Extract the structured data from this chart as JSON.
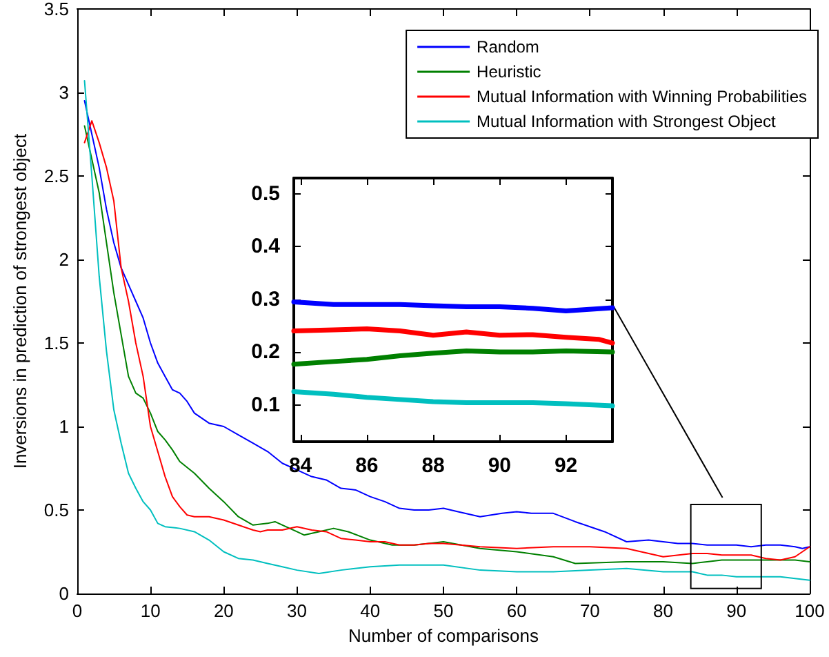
{
  "chart_data": [
    {
      "type": "line",
      "xlabel": "Number of comparisons",
      "ylabel": "Inversions in prediction of strongest object",
      "xlim": [
        0,
        100
      ],
      "xticks": [
        0,
        10,
        20,
        30,
        40,
        50,
        60,
        70,
        80,
        90,
        100
      ],
      "ylim": [
        0,
        3.5
      ],
      "yticks": [
        0,
        0.5,
        1,
        1.5,
        2,
        2.5,
        3,
        3.5
      ],
      "legend": "top right",
      "grid": false,
      "series": [
        {
          "name": "Random",
          "color": "#0000ff",
          "x": [
            1,
            2,
            3,
            4,
            5,
            6,
            7,
            8,
            9,
            10,
            11,
            12,
            13,
            14,
            15,
            16,
            18,
            20,
            22,
            24,
            26,
            28,
            30,
            32,
            34,
            36,
            38,
            40,
            42,
            44,
            46,
            48,
            50,
            52,
            55,
            58,
            60,
            62,
            65,
            68,
            70,
            72,
            75,
            78,
            80,
            82,
            84,
            86,
            88,
            90,
            92,
            94,
            96,
            98,
            99,
            100
          ],
          "values": [
            2.95,
            2.75,
            2.55,
            2.3,
            2.1,
            1.95,
            1.85,
            1.75,
            1.65,
            1.5,
            1.38,
            1.3,
            1.22,
            1.2,
            1.15,
            1.08,
            1.02,
            1.0,
            0.95,
            0.9,
            0.85,
            0.78,
            0.74,
            0.7,
            0.68,
            0.63,
            0.62,
            0.58,
            0.55,
            0.51,
            0.5,
            0.5,
            0.51,
            0.49,
            0.46,
            0.48,
            0.49,
            0.48,
            0.48,
            0.43,
            0.4,
            0.37,
            0.31,
            0.32,
            0.31,
            0.3,
            0.3,
            0.29,
            0.29,
            0.29,
            0.28,
            0.29,
            0.29,
            0.28,
            0.27,
            0.28
          ]
        },
        {
          "name": "Heuristic",
          "color": "#008000",
          "x": [
            1,
            2,
            3,
            4,
            5,
            6,
            7,
            8,
            9,
            10,
            11,
            12,
            13,
            14,
            16,
            18,
            20,
            22,
            24,
            26,
            27,
            30,
            31,
            33,
            35,
            37,
            40,
            43,
            46,
            48,
            50,
            55,
            60,
            65,
            68,
            75,
            80,
            84,
            86,
            88,
            90,
            92,
            94,
            96,
            98,
            100
          ],
          "values": [
            2.8,
            2.6,
            2.4,
            2.1,
            1.8,
            1.55,
            1.3,
            1.2,
            1.17,
            1.08,
            0.97,
            0.92,
            0.86,
            0.79,
            0.72,
            0.63,
            0.55,
            0.46,
            0.41,
            0.42,
            0.43,
            0.37,
            0.35,
            0.37,
            0.39,
            0.37,
            0.32,
            0.29,
            0.29,
            0.3,
            0.31,
            0.27,
            0.25,
            0.22,
            0.18,
            0.19,
            0.19,
            0.18,
            0.19,
            0.2,
            0.2,
            0.2,
            0.2,
            0.2,
            0.2,
            0.19
          ]
        },
        {
          "name": "Mutual Information with Winning Probabilities",
          "color": "#ff0000",
          "x": [
            1,
            2,
            3,
            4,
            5,
            6,
            7,
            8,
            9,
            10,
            11,
            12,
            13,
            14,
            15,
            16,
            18,
            20,
            22,
            24,
            25,
            26,
            28,
            30,
            32,
            34,
            36,
            38,
            40,
            42,
            44,
            46,
            48,
            50,
            55,
            60,
            65,
            70,
            75,
            80,
            84,
            86,
            88,
            90,
            92,
            94,
            96,
            98,
            100
          ],
          "values": [
            2.7,
            2.83,
            2.7,
            2.55,
            2.35,
            1.95,
            1.75,
            1.5,
            1.3,
            1.0,
            0.85,
            0.7,
            0.58,
            0.52,
            0.47,
            0.46,
            0.46,
            0.44,
            0.41,
            0.38,
            0.37,
            0.38,
            0.38,
            0.4,
            0.38,
            0.37,
            0.33,
            0.32,
            0.31,
            0.31,
            0.29,
            0.29,
            0.3,
            0.3,
            0.28,
            0.27,
            0.28,
            0.28,
            0.27,
            0.22,
            0.24,
            0.24,
            0.23,
            0.23,
            0.23,
            0.21,
            0.2,
            0.22,
            0.28
          ]
        },
        {
          "name": "Mutual Information with Strongest Object",
          "color": "#00bfbf",
          "x": [
            1,
            2,
            3,
            4,
            5,
            6,
            7,
            8,
            9,
            10,
            11,
            12,
            14,
            16,
            18,
            20,
            22,
            24,
            26,
            28,
            30,
            33,
            36,
            40,
            44,
            48,
            50,
            55,
            60,
            65,
            70,
            75,
            80,
            84,
            86,
            88,
            90,
            92,
            94,
            96,
            98,
            100
          ],
          "values": [
            3.07,
            2.5,
            1.9,
            1.45,
            1.1,
            0.9,
            0.72,
            0.63,
            0.55,
            0.5,
            0.42,
            0.4,
            0.39,
            0.37,
            0.32,
            0.25,
            0.21,
            0.2,
            0.18,
            0.16,
            0.14,
            0.12,
            0.14,
            0.16,
            0.17,
            0.17,
            0.17,
            0.14,
            0.13,
            0.13,
            0.14,
            0.15,
            0.13,
            0.13,
            0.11,
            0.11,
            0.1,
            0.1,
            0.1,
            0.1,
            0.09,
            0.08
          ]
        }
      ]
    },
    {
      "type": "line",
      "xlim": [
        83.8,
        93.4
      ],
      "xticks": [
        84,
        86,
        88,
        90,
        92
      ],
      "ylim": [
        0.03,
        0.53
      ],
      "yticks": [
        0.1,
        0.2,
        0.3,
        0.4,
        0.5
      ],
      "grid": false,
      "series": [
        {
          "color": "#0000ff",
          "x": [
            83.8,
            85,
            86,
            87,
            88,
            89,
            90,
            91,
            92,
            93.4
          ],
          "values": [
            0.295,
            0.29,
            0.29,
            0.29,
            0.288,
            0.286,
            0.286,
            0.283,
            0.278,
            0.284
          ]
        },
        {
          "color": "#ff0000",
          "x": [
            83.8,
            85,
            86,
            87,
            88,
            89,
            90,
            91,
            92,
            93,
            93.4
          ],
          "values": [
            0.24,
            0.242,
            0.244,
            0.24,
            0.232,
            0.238,
            0.232,
            0.233,
            0.228,
            0.224,
            0.217
          ]
        },
        {
          "color": "#008000",
          "x": [
            83.8,
            85,
            86,
            87,
            88,
            89,
            90,
            91,
            92,
            93.4
          ],
          "values": [
            0.177,
            0.182,
            0.186,
            0.193,
            0.198,
            0.202,
            0.2,
            0.2,
            0.202,
            0.2
          ]
        },
        {
          "color": "#00bfbf",
          "x": [
            83.8,
            85,
            86,
            87,
            88,
            89,
            90,
            91,
            92,
            93.4
          ],
          "values": [
            0.125,
            0.12,
            0.114,
            0.11,
            0.106,
            0.104,
            0.104,
            0.104,
            0.102,
            0.098
          ]
        }
      ]
    }
  ]
}
